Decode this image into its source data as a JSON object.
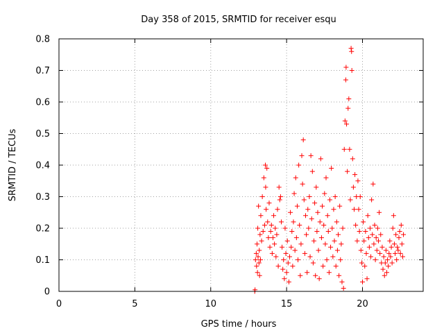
{
  "chart_data": {
    "type": "scatter",
    "title": "Day 358 of 2015, SRMTID for receiver esqu",
    "xlabel": "GPS time / hours",
    "ylabel": "SRMTID / TECUs",
    "xlim": [
      0,
      24
    ],
    "ylim": [
      0,
      0.8
    ],
    "xticks": [
      0,
      5,
      10,
      15,
      20
    ],
    "yticks": [
      0,
      0.1,
      0.2,
      0.3,
      0.4,
      0.5,
      0.6,
      0.7,
      0.8
    ],
    "xtick_labels": [
      "0",
      "5",
      "10",
      "15",
      "20"
    ],
    "ytick_labels": [
      "0",
      "0.1",
      "0.2",
      "0.3",
      "0.4",
      "0.5",
      "0.6",
      "0.7",
      "0.8"
    ],
    "grid": true,
    "marker": "plus",
    "color": "#ff0000",
    "series": [
      {
        "name": "SRMTID",
        "points": [
          [
            12.9,
            0.0
          ],
          [
            12.92,
            0.005
          ],
          [
            12.95,
            0.1
          ],
          [
            13.0,
            0.12
          ],
          [
            13.02,
            0.08
          ],
          [
            13.05,
            0.15
          ],
          [
            13.08,
            0.06
          ],
          [
            13.1,
            0.2
          ],
          [
            13.12,
            0.11
          ],
          [
            13.15,
            0.27
          ],
          [
            13.18,
            0.09
          ],
          [
            13.2,
            0.13
          ],
          [
            13.22,
            0.05
          ],
          [
            13.25,
            0.18
          ],
          [
            13.28,
            0.1
          ],
          [
            13.3,
            0.24
          ],
          [
            13.35,
            0.16
          ],
          [
            13.4,
            0.3
          ],
          [
            13.45,
            0.19
          ],
          [
            13.5,
            0.36
          ],
          [
            13.55,
            0.21
          ],
          [
            13.6,
            0.4
          ],
          [
            13.62,
            0.33
          ],
          [
            13.65,
            0.26
          ],
          [
            13.7,
            0.39
          ],
          [
            13.75,
            0.22
          ],
          [
            13.8,
            0.17
          ],
          [
            13.85,
            0.28
          ],
          [
            13.9,
            0.14
          ],
          [
            13.95,
            0.19
          ],
          [
            14.0,
            0.21
          ],
          [
            14.05,
            0.12
          ],
          [
            14.1,
            0.17
          ],
          [
            14.15,
            0.24
          ],
          [
            14.2,
            0.15
          ],
          [
            14.25,
            0.2
          ],
          [
            14.3,
            0.11
          ],
          [
            14.35,
            0.18
          ],
          [
            14.4,
            0.26
          ],
          [
            14.45,
            0.08
          ],
          [
            14.5,
            0.33
          ],
          [
            14.55,
            0.29
          ],
          [
            14.6,
            0.3
          ],
          [
            14.65,
            0.22
          ],
          [
            14.7,
            0.14
          ],
          [
            14.75,
            0.07
          ],
          [
            14.8,
            0.1
          ],
          [
            14.85,
            0.04
          ],
          [
            14.9,
            0.2
          ],
          [
            14.95,
            0.12
          ],
          [
            15.0,
            0.06
          ],
          [
            15.05,
            0.16
          ],
          [
            15.1,
            0.09
          ],
          [
            15.15,
            0.03
          ],
          [
            15.2,
            0.11
          ],
          [
            15.25,
            0.25
          ],
          [
            15.3,
            0.14
          ],
          [
            15.35,
            0.19
          ],
          [
            15.4,
            0.08
          ],
          [
            15.45,
            0.22
          ],
          [
            15.5,
            0.31
          ],
          [
            15.55,
            0.13
          ],
          [
            15.6,
            0.36
          ],
          [
            15.65,
            0.17
          ],
          [
            15.7,
            0.27
          ],
          [
            15.75,
            0.1
          ],
          [
            15.8,
            0.4
          ],
          [
            15.85,
            0.21
          ],
          [
            15.9,
            0.05
          ],
          [
            15.95,
            0.15
          ],
          [
            16.0,
            0.43
          ],
          [
            16.05,
            0.34
          ],
          [
            16.1,
            0.48
          ],
          [
            16.15,
            0.29
          ],
          [
            16.2,
            0.12
          ],
          [
            16.25,
            0.24
          ],
          [
            16.3,
            0.18
          ],
          [
            16.35,
            0.06
          ],
          [
            16.4,
            0.26
          ],
          [
            16.45,
            0.2
          ],
          [
            16.5,
            0.3
          ],
          [
            16.55,
            0.11
          ],
          [
            16.6,
            0.43
          ],
          [
            16.65,
            0.23
          ],
          [
            16.7,
            0.38
          ],
          [
            16.75,
            0.09
          ],
          [
            16.8,
            0.16
          ],
          [
            16.85,
            0.28
          ],
          [
            16.9,
            0.05
          ],
          [
            16.95,
            0.33
          ],
          [
            17.0,
            0.19
          ],
          [
            17.05,
            0.25
          ],
          [
            17.1,
            0.13
          ],
          [
            17.15,
            0.04
          ],
          [
            17.2,
            0.22
          ],
          [
            17.25,
            0.42
          ],
          [
            17.3,
            0.17
          ],
          [
            17.35,
            0.27
          ],
          [
            17.4,
            0.08
          ],
          [
            17.45,
            0.21
          ],
          [
            17.5,
            0.31
          ],
          [
            17.55,
            0.15
          ],
          [
            17.6,
            0.36
          ],
          [
            17.65,
            0.1
          ],
          [
            17.7,
            0.24
          ],
          [
            17.75,
            0.19
          ],
          [
            17.8,
            0.06
          ],
          [
            17.85,
            0.29
          ],
          [
            17.9,
            0.14
          ],
          [
            17.95,
            0.39
          ],
          [
            18.0,
            0.2
          ],
          [
            18.05,
            0.11
          ],
          [
            18.1,
            0.26
          ],
          [
            18.15,
            0.16
          ],
          [
            18.2,
            0.3
          ],
          [
            18.25,
            0.08
          ],
          [
            18.3,
            0.22
          ],
          [
            18.35,
            0.13
          ],
          [
            18.4,
            0.18
          ],
          [
            18.45,
            0.05
          ],
          [
            18.5,
            0.27
          ],
          [
            18.55,
            0.1
          ],
          [
            18.6,
            0.15
          ],
          [
            18.65,
            0.03
          ],
          [
            18.7,
            0.2
          ],
          [
            18.75,
            0.01
          ],
          [
            18.8,
            0.45
          ],
          [
            18.85,
            0.54
          ],
          [
            18.9,
            0.67
          ],
          [
            18.92,
            0.71
          ],
          [
            18.95,
            0.53
          ],
          [
            19.0,
            0.38
          ],
          [
            19.05,
            0.58
          ],
          [
            19.1,
            0.61
          ],
          [
            19.15,
            0.45
          ],
          [
            19.2,
            0.29
          ],
          [
            19.25,
            0.77
          ],
          [
            19.28,
            0.76
          ],
          [
            19.3,
            0.7
          ],
          [
            19.35,
            0.42
          ],
          [
            19.4,
            0.33
          ],
          [
            19.45,
            0.26
          ],
          [
            19.5,
            0.37
          ],
          [
            19.55,
            0.21
          ],
          [
            19.6,
            0.3
          ],
          [
            19.65,
            0.16
          ],
          [
            19.7,
            0.35
          ],
          [
            19.75,
            0.26
          ],
          [
            19.8,
            0.19
          ],
          [
            19.85,
            0.3
          ],
          [
            19.9,
            0.13
          ],
          [
            19.95,
            0.09
          ],
          [
            20.0,
            0.03
          ],
          [
            20.05,
            0.22
          ],
          [
            20.1,
            0.16
          ],
          [
            20.15,
            0.08
          ],
          [
            20.2,
            0.19
          ],
          [
            20.25,
            0.12
          ],
          [
            20.3,
            0.04
          ],
          [
            20.35,
            0.24
          ],
          [
            20.4,
            0.17
          ],
          [
            20.45,
            0.14
          ],
          [
            20.5,
            0.2
          ],
          [
            20.55,
            0.11
          ],
          [
            20.6,
            0.29
          ],
          [
            20.65,
            0.18
          ],
          [
            20.7,
            0.34
          ],
          [
            20.75,
            0.15
          ],
          [
            20.8,
            0.21
          ],
          [
            20.85,
            0.1
          ],
          [
            20.9,
            0.17
          ],
          [
            20.95,
            0.13
          ],
          [
            21.0,
            0.2
          ],
          [
            21.05,
            0.16
          ],
          [
            21.1,
            0.25
          ],
          [
            21.15,
            0.12
          ],
          [
            21.2,
            0.18
          ],
          [
            21.25,
            0.09
          ],
          [
            21.3,
            0.14
          ],
          [
            21.35,
            0.07
          ],
          [
            21.4,
            0.11
          ],
          [
            21.45,
            0.05
          ],
          [
            21.5,
            0.09
          ],
          [
            21.55,
            0.13
          ],
          [
            21.6,
            0.06
          ],
          [
            21.65,
            0.1
          ],
          [
            21.7,
            0.08
          ],
          [
            21.75,
            0.12
          ],
          [
            21.8,
            0.16
          ],
          [
            21.85,
            0.11
          ],
          [
            21.9,
            0.14
          ],
          [
            21.95,
            0.09
          ],
          [
            22.0,
            0.2
          ],
          [
            22.05,
            0.24
          ],
          [
            22.1,
            0.15
          ],
          [
            22.15,
            0.12
          ],
          [
            22.2,
            0.18
          ],
          [
            22.25,
            0.1
          ],
          [
            22.3,
            0.14
          ],
          [
            22.35,
            0.13
          ],
          [
            22.4,
            0.17
          ],
          [
            22.45,
            0.19
          ],
          [
            22.5,
            0.12
          ],
          [
            22.55,
            0.21
          ],
          [
            22.6,
            0.15
          ],
          [
            22.65,
            0.11
          ],
          [
            22.7,
            0.18
          ]
        ]
      }
    ]
  }
}
